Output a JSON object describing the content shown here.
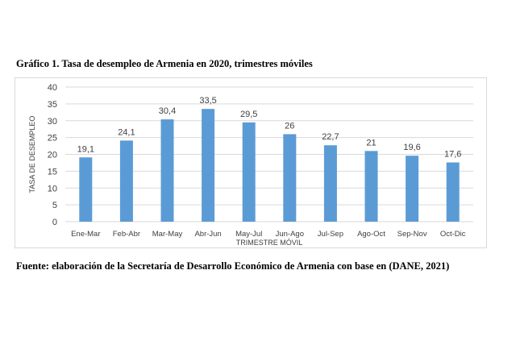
{
  "figure": {
    "caption": "Gráfico 1. Tasa de desempleo de Armenia en 2020, trimestres móviles",
    "source": "Fuente: elaboración de la Secretaría de Desarrollo Económico de Armenia con base en (DANE, 2021)"
  },
  "chart_data": {
    "type": "bar",
    "categories": [
      "Ene-Mar",
      "Feb-Abr",
      "Mar-May",
      "Abr-Jun",
      "May-Jul",
      "Jun-Ago",
      "Jul-Sep",
      "Ago-Oct",
      "Sep-Nov",
      "Oct-Dic"
    ],
    "values": [
      19.1,
      24.1,
      30.4,
      33.5,
      29.5,
      26,
      22.7,
      21,
      19.6,
      17.6
    ],
    "data_labels": [
      "19,1",
      "24,1",
      "30,4",
      "33,5",
      "29,5",
      "26",
      "22,7",
      "21",
      "19,6",
      "17,6"
    ],
    "title": "",
    "xlabel": "TRIMESTRE MÓVIL",
    "ylabel": "TASA DE DESEMPLEO",
    "ylim": [
      0,
      40
    ],
    "yticks": [
      "0",
      "5",
      "10",
      "15",
      "20",
      "25",
      "30",
      "35",
      "40"
    ],
    "grid": true,
    "legend": "none",
    "bar_color": "#5b9bd5",
    "grid_color": "#d9d9d9"
  }
}
